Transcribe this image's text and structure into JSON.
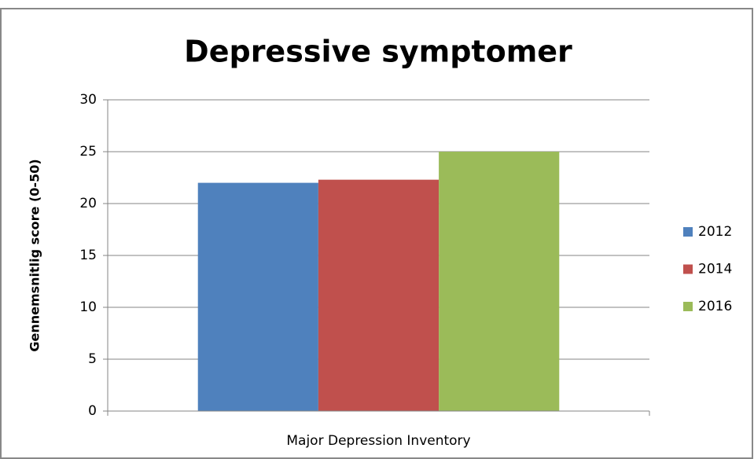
{
  "chart_data": {
    "type": "bar",
    "title": "Depressive symptomer",
    "ylabel": "Gennemsnitlig score (0-50)",
    "categories": [
      "Major Depression Inventory"
    ],
    "series": [
      {
        "name": "2012",
        "color": "#4f81bd",
        "values": [
          22
        ]
      },
      {
        "name": "2014",
        "color": "#c0504d",
        "values": [
          22.3
        ]
      },
      {
        "name": "2016",
        "color": "#9bbb59",
        "values": [
          25
        ]
      }
    ],
    "ylim": [
      0,
      30
    ],
    "yticks": [
      0,
      5,
      10,
      15,
      20,
      25,
      30
    ],
    "grid": true,
    "legend": "right"
  }
}
